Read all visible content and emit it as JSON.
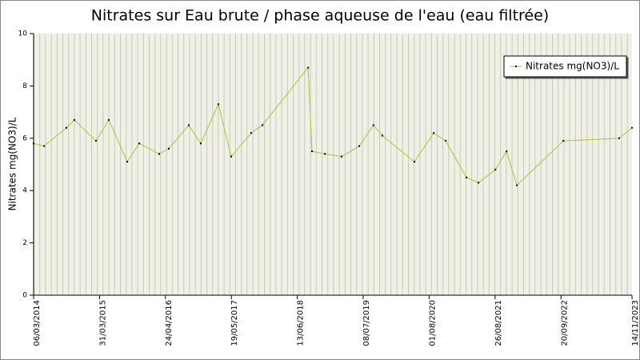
{
  "chart_data": {
    "type": "line",
    "title": "Nitrates sur Eau brute / phase aqueuse de l'eau (eau filtrée)",
    "ylabel": "Nitrates mg(NO3)/L",
    "x": [
      "06/03/2014",
      "07/05/2014",
      "16/09/2014",
      "02/11/2014",
      "10/03/2015",
      "25/05/2015",
      "11/09/2015",
      "21/11/2015",
      "18/03/2016",
      "14/05/2016",
      "09/09/2016",
      "19/11/2016",
      "03/03/2017",
      "18/05/2017",
      "13/09/2017",
      "19/11/2017",
      "16/08/2018",
      "08/09/2018",
      "23/11/2018",
      "02/03/2019",
      "14/06/2019",
      "07/09/2019",
      "29/10/2019",
      "06/05/2020",
      "28/08/2020",
      "07/11/2020",
      "10/03/2021",
      "20/05/2021",
      "28/08/2021",
      "02/11/2021",
      "02/01/2022",
      "04/10/2022",
      "30/08/2023",
      "14/11/2023"
    ],
    "series": [
      {
        "name": "Nitrates mg(NO3)/L",
        "color": "#99cc33",
        "values": [
          5.8,
          5.7,
          6.4,
          6.7,
          5.9,
          6.7,
          5.1,
          5.8,
          5.4,
          5.6,
          6.5,
          5.8,
          7.3,
          5.3,
          6.2,
          6.5,
          8.7,
          5.5,
          5.4,
          5.3,
          5.7,
          6.5,
          6.1,
          5.1,
          6.2,
          5.9,
          4.5,
          4.3,
          4.8,
          5.5,
          4.2,
          5.9,
          6.0,
          6.4
        ]
      }
    ],
    "xlim": [
      "06/03/2014",
      "14/11/2023"
    ],
    "xticks": [
      "06/03/2014",
      "31/03/2015",
      "24/04/2016",
      "19/05/2017",
      "13/06/2018",
      "08/07/2019",
      "01/08/2020",
      "26/08/2021",
      "20/09/2022",
      "14/11/2023"
    ],
    "ylim": [
      0,
      10
    ],
    "yticks": [
      0,
      2,
      4,
      6,
      8,
      10
    ],
    "legend": "top-right"
  }
}
